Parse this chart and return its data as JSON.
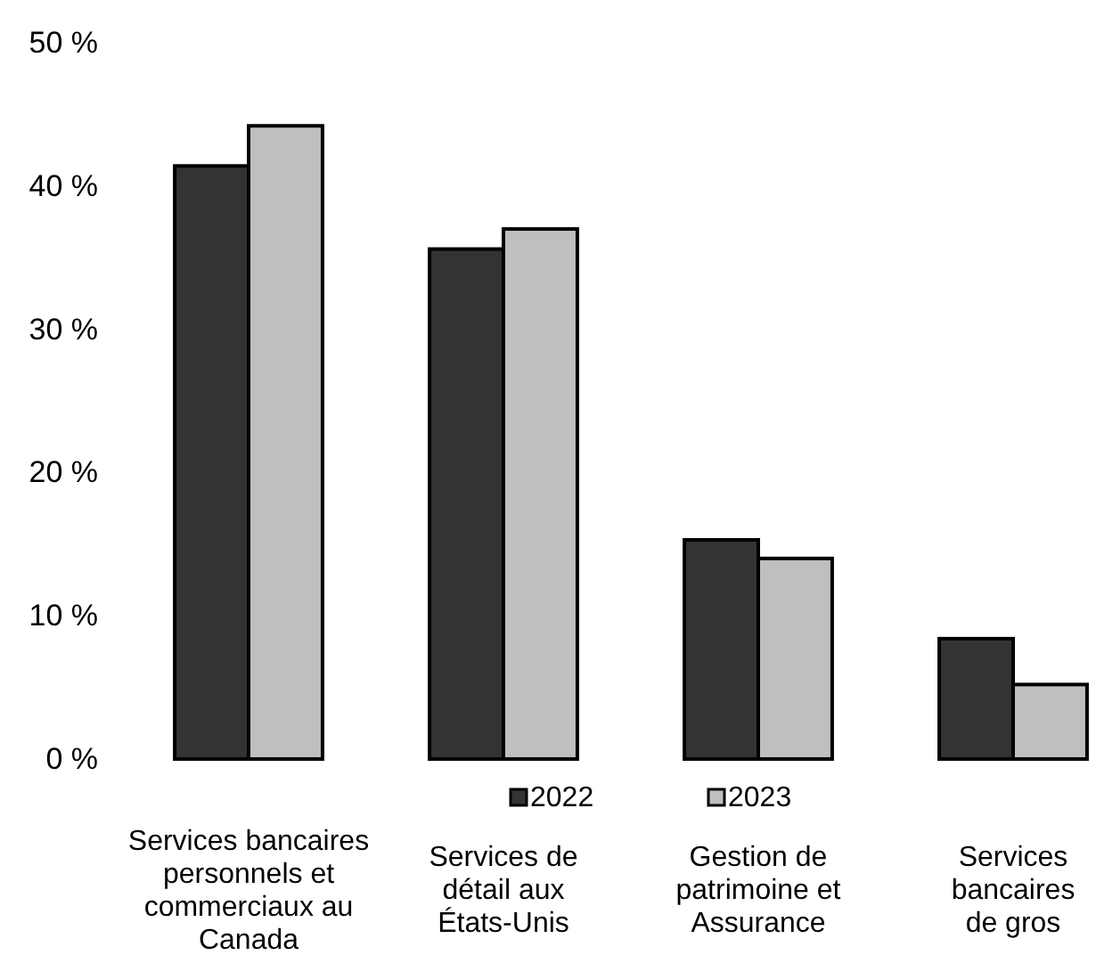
{
  "chart_data": {
    "type": "bar",
    "categories": [
      "Services bancaires\npersonnels et\ncommerciaux au\nCanada",
      "Services de\ndétail aux\nÉtats-Unis",
      "Gestion de\npatrimoine et\nAssurance",
      "Services\nbancaires\nde gros"
    ],
    "series": [
      {
        "name": "2022",
        "color": "#333333",
        "values": [
          41.4,
          35.6,
          15.3,
          8.4
        ]
      },
      {
        "name": "2023",
        "color": "#bfbfbf",
        "values": [
          44.2,
          37.0,
          14.0,
          5.2
        ]
      }
    ],
    "ylim": [
      0,
      50
    ],
    "yticks": [
      {
        "value": 0,
        "label": "0 %"
      },
      {
        "value": 10,
        "label": "10 %"
      },
      {
        "value": 20,
        "label": "20 %"
      },
      {
        "value": 30,
        "label": "30 %"
      },
      {
        "value": 40,
        "label": "40 %"
      },
      {
        "value": 50,
        "label": "50 %"
      }
    ],
    "legend": "bottom"
  }
}
